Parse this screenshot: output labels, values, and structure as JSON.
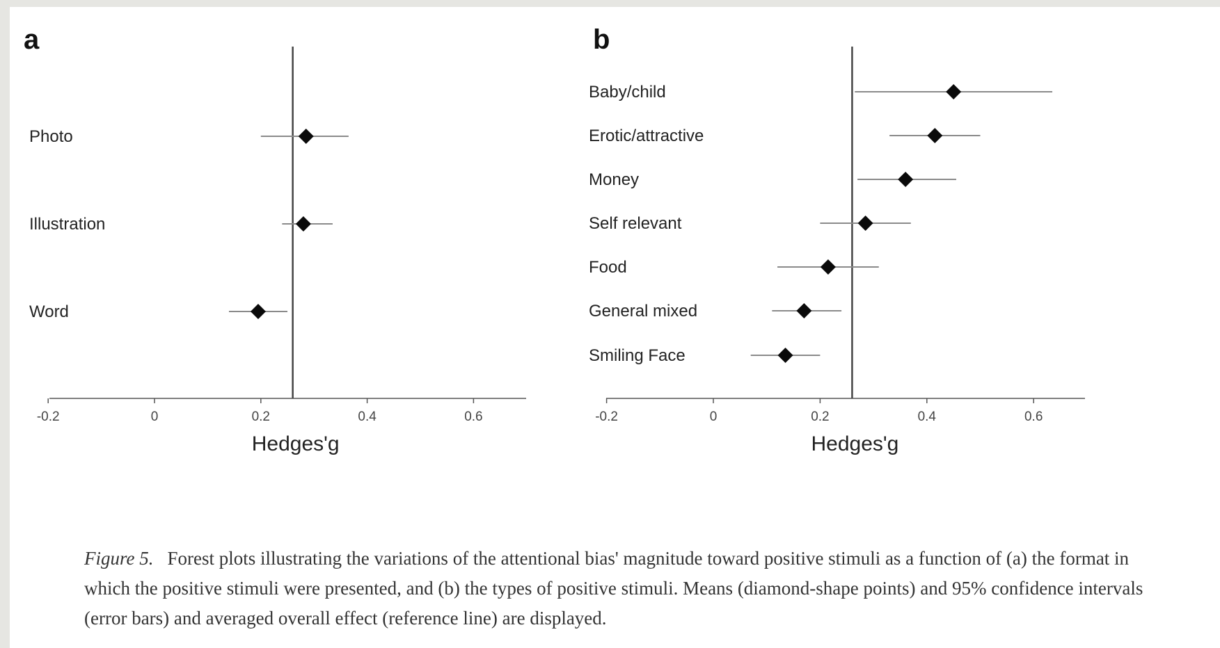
{
  "caption": {
    "label": "Figure 5.",
    "text": "Forest plots illustrating the variations of the attentional bias' magnitude toward positive stimuli as a function of (a) the format in which the positive stimuli were presented, and (b) the types of positive stimuli. Means (diamond-shape points) and 95% confidence intervals (error bars) and averaged overall effect (reference line) are displayed."
  },
  "chart_data": [
    {
      "type": "scatter",
      "panel": "a",
      "xlabel": "Hedges'g",
      "xlim": [
        -0.2,
        0.7
      ],
      "xticks": [
        "-0.2",
        "0",
        "0.2",
        "0.4",
        "0.6"
      ],
      "reference_line": 0.26,
      "categories": [
        "Photo",
        "Illustration",
        "Word"
      ],
      "means": [
        0.285,
        0.28,
        0.195
      ],
      "ci_lower": [
        0.2,
        0.24,
        0.14
      ],
      "ci_upper": [
        0.365,
        0.335,
        0.25
      ]
    },
    {
      "type": "scatter",
      "panel": "b",
      "xlabel": "Hedges'g",
      "xlim": [
        -0.2,
        0.7
      ],
      "xticks": [
        "-0.2",
        "0",
        "0.2",
        "0.4",
        "0.6"
      ],
      "reference_line": 0.26,
      "categories": [
        "Baby/child",
        "Erotic/attractive",
        "Money",
        "Self relevant",
        "Food",
        "General mixed",
        "Smiling Face"
      ],
      "means": [
        0.45,
        0.415,
        0.36,
        0.285,
        0.215,
        0.17,
        0.135
      ],
      "ci_lower": [
        0.265,
        0.33,
        0.27,
        0.2,
        0.12,
        0.11,
        0.07
      ],
      "ci_upper": [
        0.635,
        0.5,
        0.455,
        0.37,
        0.31,
        0.24,
        0.2
      ]
    }
  ]
}
